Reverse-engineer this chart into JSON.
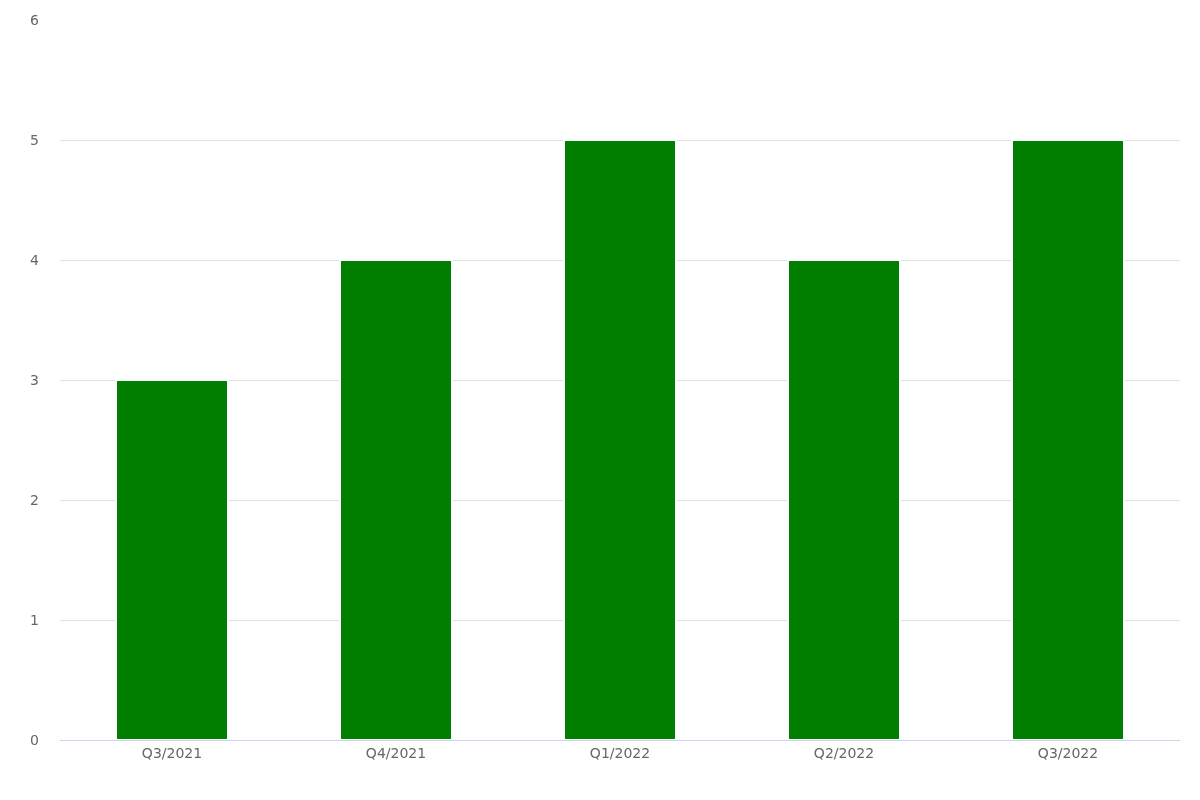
{
  "chart_data": {
    "type": "bar",
    "categories": [
      "Q3/2021",
      "Q4/2021",
      "Q1/2022",
      "Q2/2022",
      "Q3/2022"
    ],
    "values": [
      3,
      4,
      5,
      4,
      5
    ],
    "color": "#007f00",
    "ylim": [
      0,
      6
    ],
    "yticks": [
      0,
      1,
      2,
      3,
      4,
      5,
      6
    ],
    "grid": "y",
    "legend": false
  }
}
